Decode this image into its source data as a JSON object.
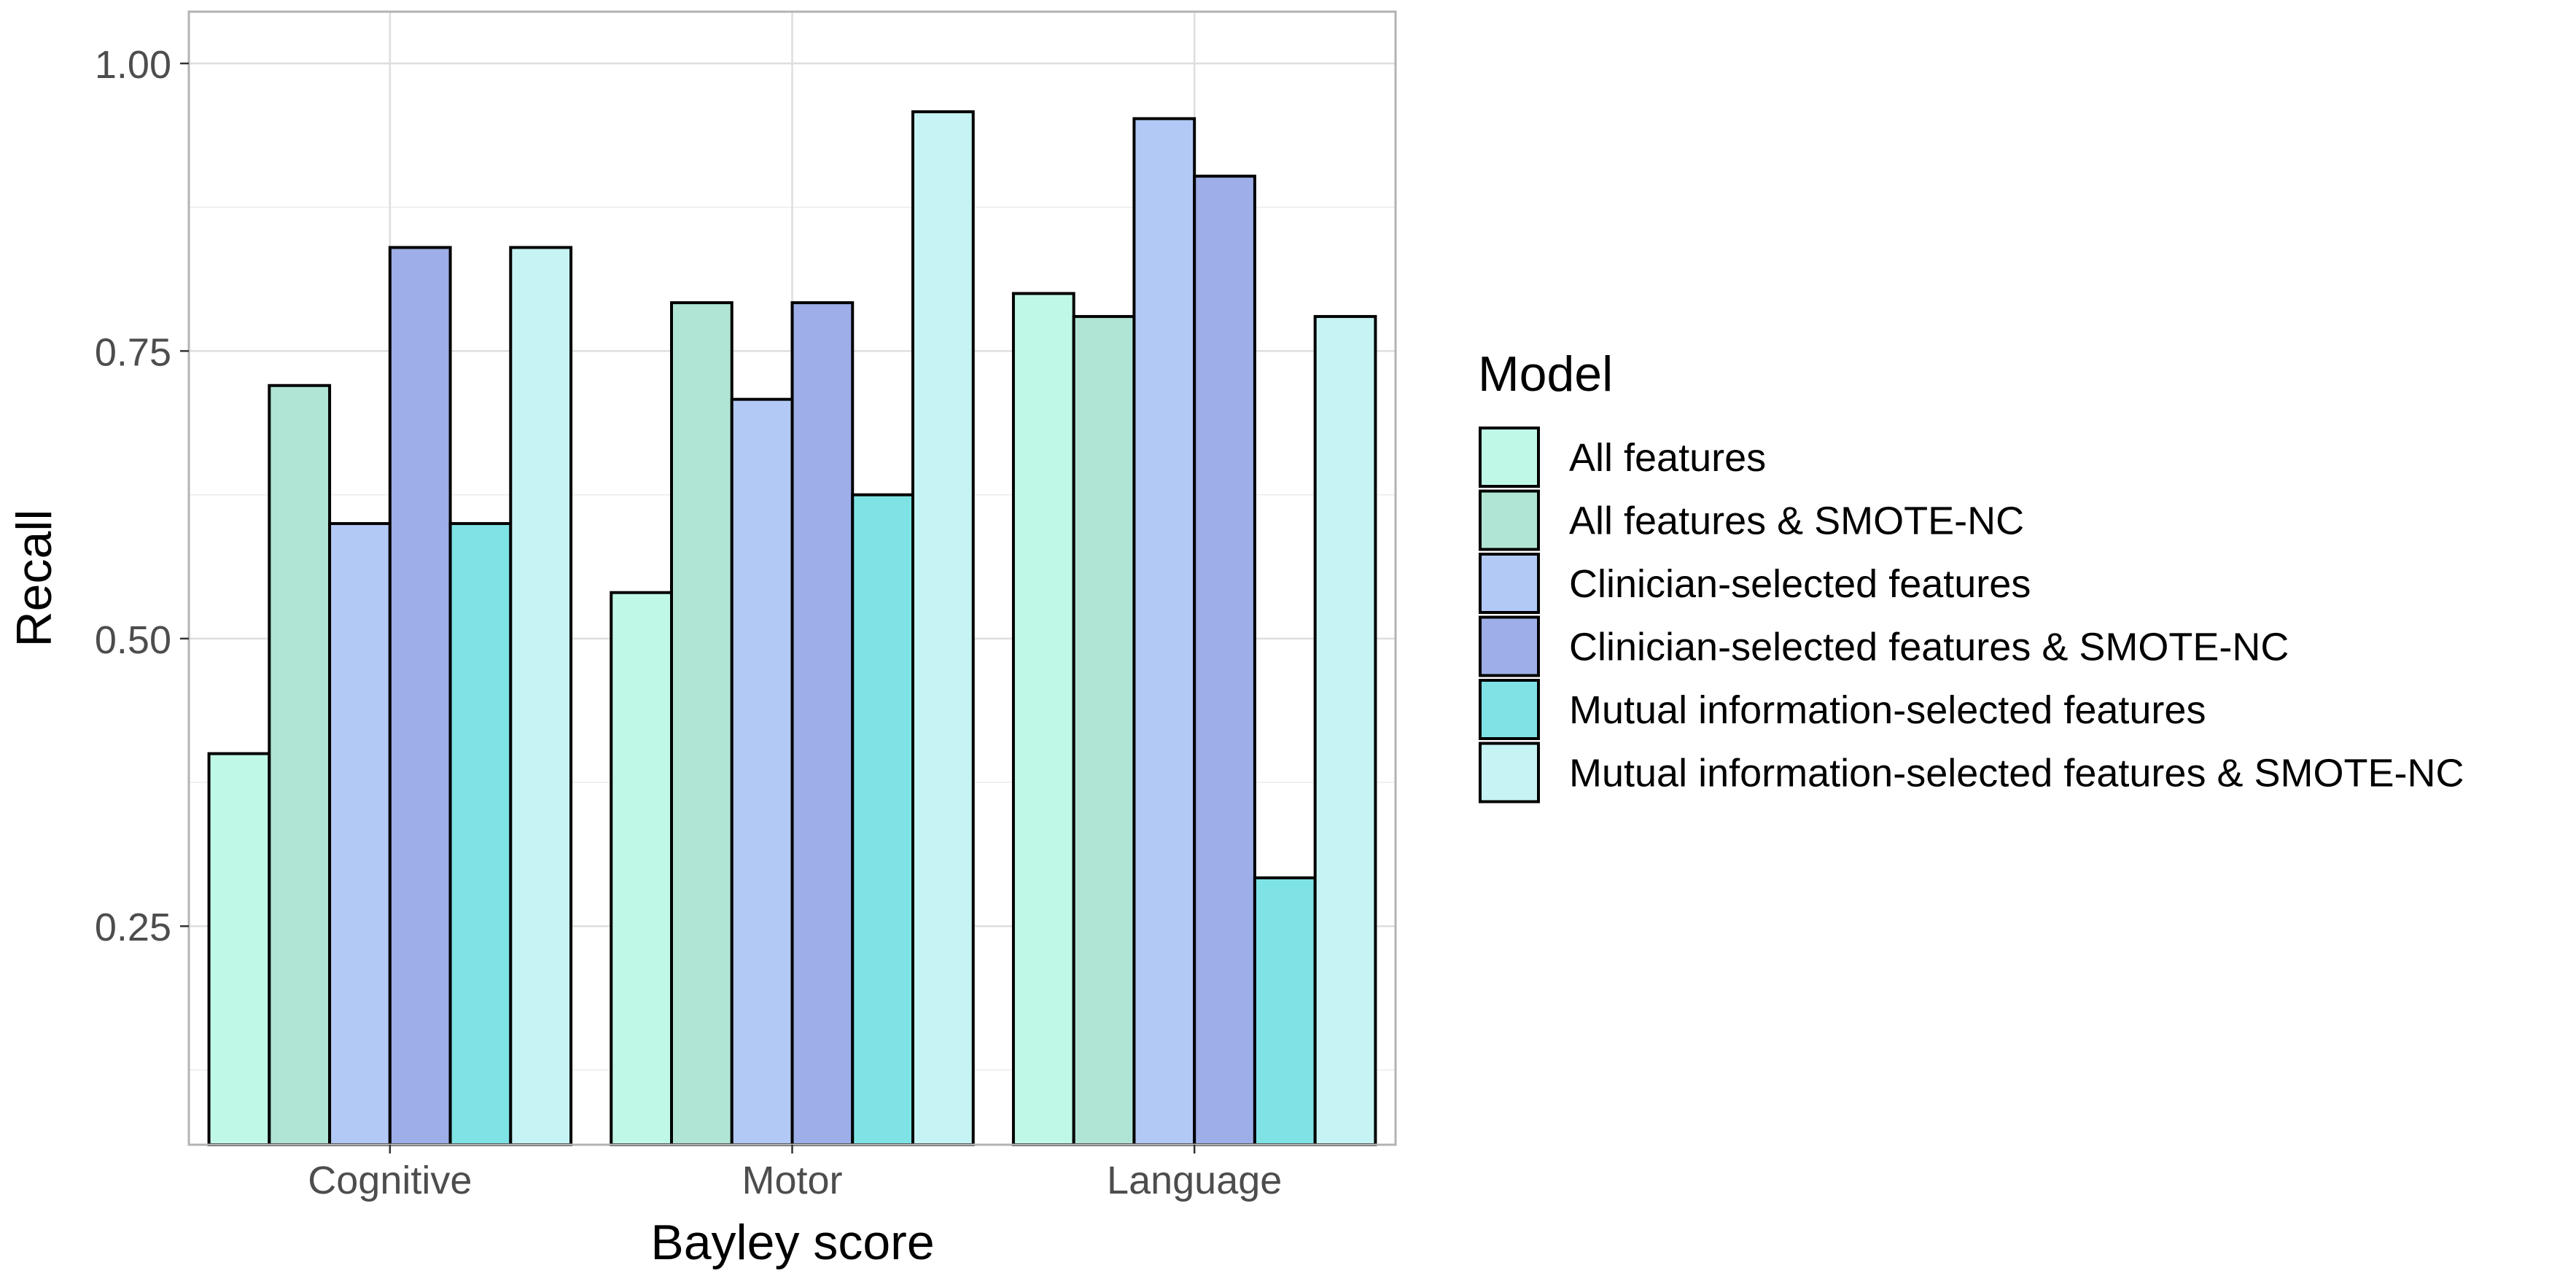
{
  "chart_data": {
    "type": "bar",
    "title": "",
    "xlabel": "Bayley score",
    "ylabel": "Recall",
    "categories": [
      "Cognitive",
      "Motor",
      "Language"
    ],
    "ylim": [
      0.06,
      1.045
    ],
    "yticks": [
      {
        "value": 0.25,
        "label": "0.25"
      },
      {
        "value": 0.5,
        "label": "0.50"
      },
      {
        "value": 0.75,
        "label": "0.75"
      },
      {
        "value": 1.0,
        "label": "1.00"
      }
    ],
    "grid": true,
    "legend": {
      "title": "Model",
      "position": "right"
    },
    "series": [
      {
        "name": "All features",
        "color": "#c0f8e8",
        "values": [
          0.4,
          0.54,
          0.8
        ]
      },
      {
        "name": "All features & SMOTE-NC",
        "color": "#b0e5d6",
        "values": [
          0.72,
          0.792,
          0.78
        ]
      },
      {
        "name": "Clinician-selected features",
        "color": "#b3c9f5",
        "values": [
          0.6,
          0.708,
          0.952
        ]
      },
      {
        "name": "Clinician-selected features & SMOTE-NC",
        "color": "#9daee8",
        "values": [
          0.84,
          0.792,
          0.902
        ]
      },
      {
        "name": "Mutual information-selected features",
        "color": "#7fe3e6",
        "values": [
          0.6,
          0.625,
          0.292
        ]
      },
      {
        "name": "Mutual information-selected features & SMOTE-NC",
        "color": "#c6f4f5",
        "values": [
          0.84,
          0.958,
          0.78
        ]
      }
    ]
  }
}
